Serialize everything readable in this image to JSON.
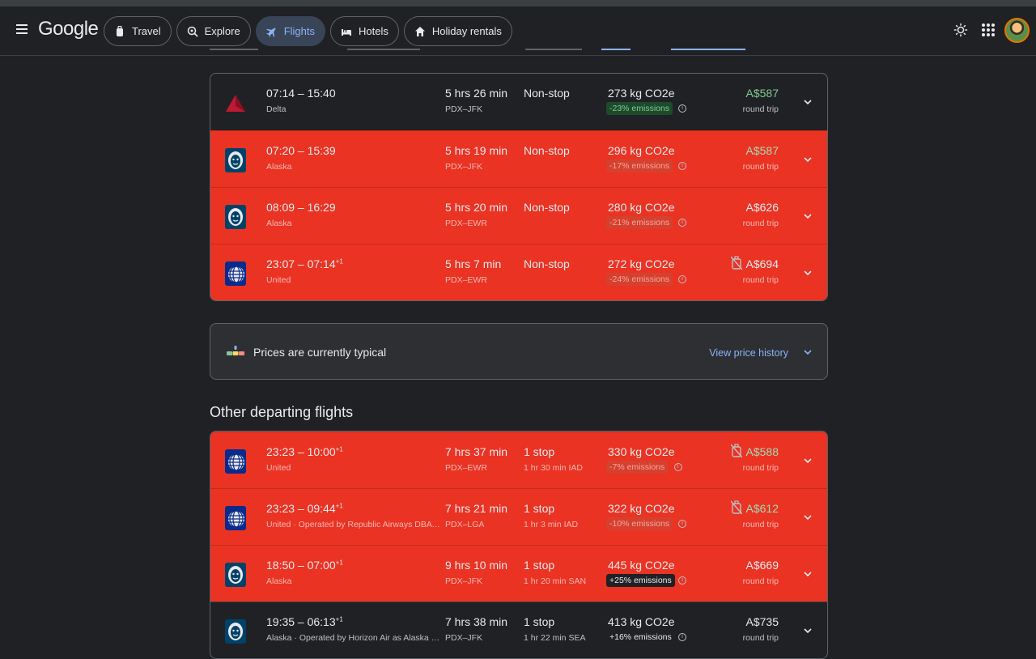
{
  "header": {
    "logo": "Google",
    "tabs": [
      {
        "label": "Travel",
        "icon": "luggage-icon",
        "active": false
      },
      {
        "label": "Explore",
        "icon": "explore-icon",
        "active": false
      },
      {
        "label": "Flights",
        "icon": "flight-icon",
        "active": true
      },
      {
        "label": "Hotels",
        "icon": "hotel-icon",
        "active": false
      },
      {
        "label": "Holiday rentals",
        "icon": "home-icon",
        "active": false
      }
    ]
  },
  "top_flights": [
    {
      "airline_logo": "delta",
      "time": "07:14 – 15:40",
      "arrival_offset": "",
      "airline": "Delta",
      "duration": "5 hrs 26 min",
      "route": "PDX–JFK",
      "stops": "Non-stop",
      "stop_detail": "",
      "co2": "273 kg CO2e",
      "emissions": "-23% emissions",
      "emissions_kind": "low",
      "price": "A$587",
      "price_green": true,
      "no_bag": false,
      "price_note": "round trip",
      "highlighted": false
    },
    {
      "airline_logo": "alaska",
      "time": "07:20 – 15:39",
      "arrival_offset": "",
      "airline": "Alaska",
      "duration": "5 hrs 19 min",
      "route": "PDX–JFK",
      "stops": "Non-stop",
      "stop_detail": "",
      "co2": "296 kg CO2e",
      "emissions": "-17% emissions",
      "emissions_kind": "low",
      "price": "A$587",
      "price_green": true,
      "no_bag": false,
      "price_note": "round trip",
      "highlighted": true
    },
    {
      "airline_logo": "alaska",
      "time": "08:09 – 16:29",
      "arrival_offset": "",
      "airline": "Alaska",
      "duration": "5 hrs 20 min",
      "route": "PDX–EWR",
      "stops": "Non-stop",
      "stop_detail": "",
      "co2": "280 kg CO2e",
      "emissions": "-21% emissions",
      "emissions_kind": "low",
      "price": "A$626",
      "price_green": false,
      "no_bag": false,
      "price_note": "round trip",
      "highlighted": true
    },
    {
      "airline_logo": "united",
      "time": "23:07 – 07:14",
      "arrival_offset": "+1",
      "airline": "United",
      "duration": "5 hrs 7 min",
      "route": "PDX–EWR",
      "stops": "Non-stop",
      "stop_detail": "",
      "co2": "272 kg CO2e",
      "emissions": "-24% emissions",
      "emissions_kind": "low",
      "price": "A$694",
      "price_green": false,
      "no_bag": true,
      "price_note": "round trip",
      "highlighted": true
    }
  ],
  "price_insight": {
    "text": "Prices are currently typical",
    "link": "View price history"
  },
  "other_title": "Other departing flights",
  "other_flights": [
    {
      "airline_logo": "united",
      "time": "23:23 – 10:00",
      "arrival_offset": "+1",
      "airline": "United",
      "duration": "7 hrs 37 min",
      "route": "PDX–EWR",
      "stops": "1 stop",
      "stop_detail": "1 hr 30 min IAD",
      "co2": "330 kg CO2e",
      "emissions": "-7% emissions",
      "emissions_kind": "low",
      "price": "A$588",
      "price_green": true,
      "no_bag": true,
      "price_note": "round trip",
      "highlighted": true
    },
    {
      "airline_logo": "united",
      "time": "23:23 – 09:44",
      "arrival_offset": "+1",
      "airline": "United · Operated by Republic Airways DBA United Express",
      "duration": "7 hrs 21 min",
      "route": "PDX–LGA",
      "stops": "1 stop",
      "stop_detail": "1 hr 3 min IAD",
      "co2": "322 kg CO2e",
      "emissions": "-10% emissions",
      "emissions_kind": "low",
      "price": "A$612",
      "price_green": true,
      "no_bag": true,
      "price_note": "round trip",
      "highlighted": true
    },
    {
      "airline_logo": "alaska",
      "time": "18:50 – 07:00",
      "arrival_offset": "+1",
      "airline": "Alaska",
      "duration": "9 hrs 10 min",
      "route": "PDX–JFK",
      "stops": "1 stop",
      "stop_detail": "1 hr 20 min SAN",
      "co2": "445 kg CO2e",
      "emissions": "+25% emissions",
      "emissions_kind": "high",
      "price": "A$669",
      "price_green": false,
      "no_bag": false,
      "price_note": "round trip",
      "highlighted": true
    },
    {
      "airline_logo": "alaska",
      "time": "19:35 – 06:13",
      "arrival_offset": "+1",
      "airline": "Alaska · Operated by Horizon Air as Alaska Horizon",
      "duration": "7 hrs 38 min",
      "route": "PDX–JFK",
      "stops": "1 stop",
      "stop_detail": "1 hr 22 min SEA",
      "co2": "413 kg CO2e",
      "emissions": "+16% emissions",
      "emissions_kind": "plain",
      "price": "A$735",
      "price_green": false,
      "no_bag": false,
      "price_note": "round trip",
      "highlighted": false
    }
  ],
  "colors": {
    "highlight": "#ea3323",
    "accent": "#8ab4f8",
    "green": "#81c995",
    "background": "#202124"
  }
}
